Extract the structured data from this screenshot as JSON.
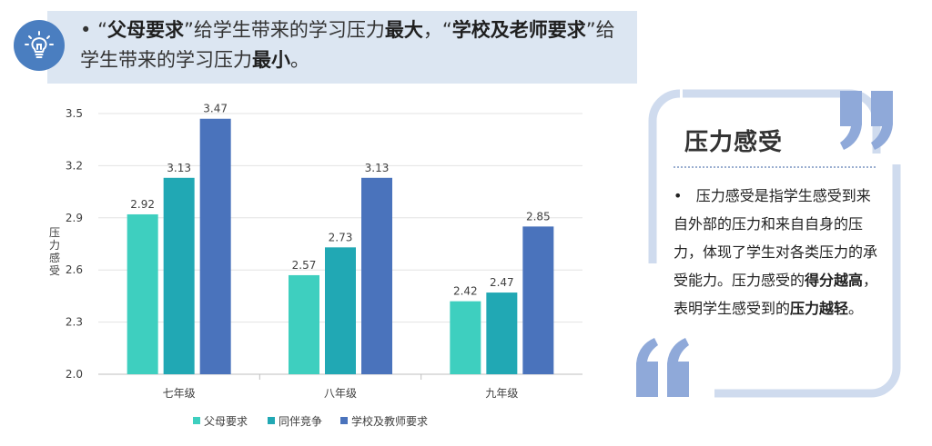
{
  "banner": {
    "bullet": "•",
    "part1": "“",
    "bold1": "父母要求",
    "part2": "”给学生带来的学习压力",
    "bold2": "最大",
    "part3": "，“",
    "bold3": "学校及老师要求",
    "part4": "”给学生带来的学习压力",
    "bold4": "最小",
    "part5": "。"
  },
  "card": {
    "title": "压力感受",
    "bullet": "•",
    "text1": "压力感受是指学生感受到来自外部的压力和来自自身的压力，体现了学生对各类压力的承受能力。压力感受的",
    "bold1": "得分越高",
    "text2": "，表明学生感受到的",
    "bold2": "压力越轻",
    "text3": "。"
  },
  "colors": {
    "accent": "#4a7ec0",
    "banner_bg": "#dce6f2",
    "quote": "#8fa9d9"
  },
  "chart_data": {
    "type": "bar",
    "categories": [
      "七年级",
      "八年级",
      "九年级"
    ],
    "series": [
      {
        "name": "父母要求",
        "color": "#3ecfbf",
        "values": [
          2.92,
          2.57,
          2.42
        ]
      },
      {
        "name": "同伴竞争",
        "color": "#21a8b4",
        "values": [
          3.13,
          2.73,
          2.47
        ]
      },
      {
        "name": "学校及教师要求",
        "color": "#4a73bc",
        "values": [
          3.47,
          3.13,
          2.85
        ]
      }
    ],
    "ylabel": "压力感受",
    "ylim": [
      2.0,
      3.5
    ],
    "yticks": [
      "2.0",
      "2.3",
      "2.6",
      "2.9",
      "3.2",
      "3.5"
    ],
    "grid": true,
    "legend": "bottom"
  }
}
